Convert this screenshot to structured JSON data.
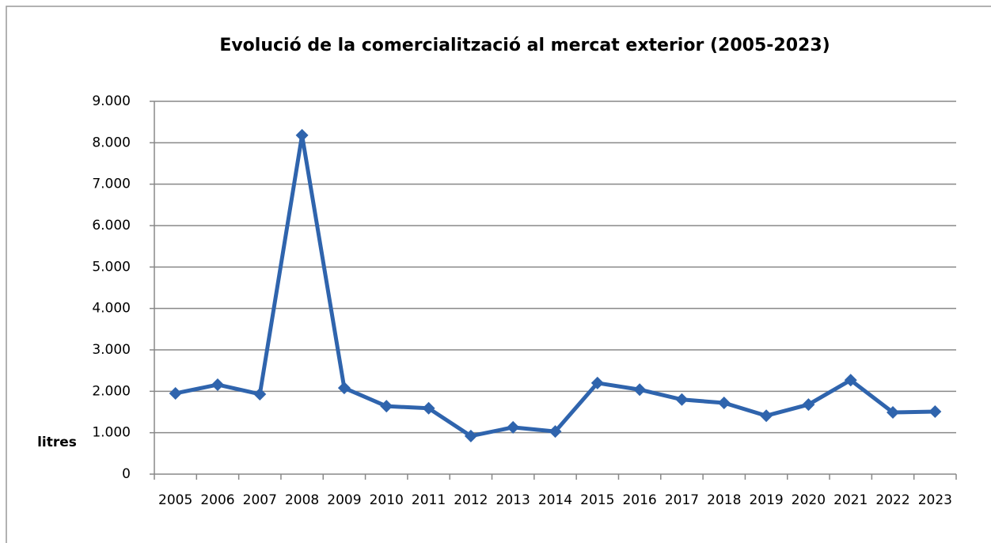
{
  "chart_data": {
    "type": "line",
    "title": "Evolució de la comercialització al mercat exterior (2005-2023)",
    "y_label": "litres",
    "categories": [
      "2005",
      "2006",
      "2007",
      "2008",
      "2009",
      "2010",
      "2011",
      "2012",
      "2013",
      "2014",
      "2015",
      "2016",
      "2017",
      "2018",
      "2019",
      "2020",
      "2021",
      "2022",
      "2023"
    ],
    "series": [
      {
        "name": "litres",
        "color": "#2f64ad",
        "values": [
          1950,
          2160,
          1930,
          8180,
          2080,
          1640,
          1590,
          920,
          1130,
          1030,
          2200,
          2040,
          1800,
          1720,
          1410,
          1680,
          2270,
          1490,
          1510
        ]
      }
    ],
    "ylim": [
      0,
      9000
    ],
    "yticks": [
      0,
      {
        "value": 1000,
        "label": "1.000"
      },
      {
        "value": 2000,
        "label": "2.000"
      },
      {
        "value": 3000,
        "label": "3.000"
      },
      {
        "value": 4000,
        "label": "4.000"
      },
      {
        "value": 5000,
        "label": "5.000"
      },
      {
        "value": 6000,
        "label": "6.000"
      },
      {
        "value": 7000,
        "label": "7.000"
      },
      {
        "value": 8000,
        "label": "8.000"
      },
      {
        "value": 9000,
        "label": "9.000"
      }
    ],
    "grid": true
  }
}
